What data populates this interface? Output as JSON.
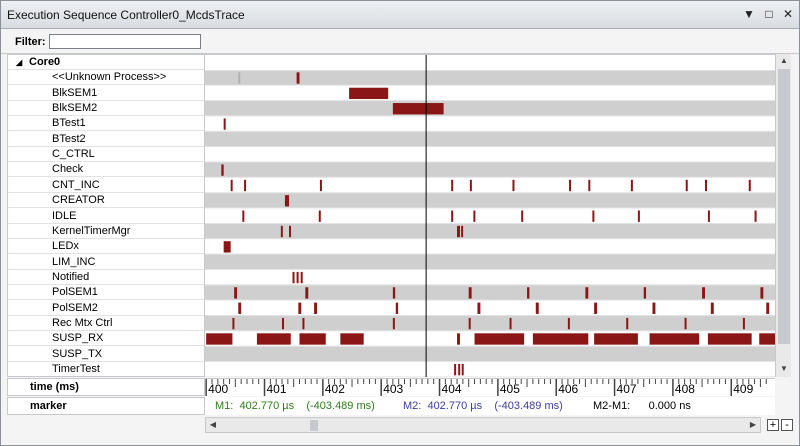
{
  "window": {
    "title": "Execution Sequence Controller0_McdsTrace",
    "controls": [
      "▼",
      "□",
      "✕"
    ]
  },
  "filter": {
    "label": "Filter:",
    "value": ""
  },
  "tree": {
    "root": "Core0",
    "rows": [
      {
        "label": "<<Unknown Process>>",
        "shade": true,
        "segments": [
          [
            400.55,
            400.57
          ],
          [
            401.55,
            401.6
          ]
        ],
        "light": [
          400.55
        ]
      },
      {
        "label": "BlkSEM1",
        "shade": false,
        "segments": [
          [
            402.45,
            403.12
          ]
        ]
      },
      {
        "label": "BlkSEM2",
        "shade": true,
        "segments": [
          [
            403.2,
            403.82
          ],
          [
            403.82,
            404.07
          ]
        ]
      },
      {
        "label": "BTest1",
        "shade": false,
        "segments": [
          [
            400.3,
            400.33
          ]
        ]
      },
      {
        "label": "BTest2",
        "shade": true,
        "segments": []
      },
      {
        "label": "C_CTRL",
        "shade": false,
        "segments": []
      },
      {
        "label": "Check",
        "shade": true,
        "segments": [
          [
            400.26,
            400.3
          ]
        ]
      },
      {
        "label": "CNT_INC",
        "shade": false,
        "segments": [
          [
            400.42,
            400.45
          ],
          [
            400.65,
            400.68
          ],
          [
            401.95,
            401.98
          ],
          [
            404.2,
            404.23
          ],
          [
            404.52,
            404.55
          ],
          [
            405.25,
            405.28
          ],
          [
            406.22,
            406.25
          ],
          [
            406.55,
            406.58
          ],
          [
            407.28,
            407.31
          ],
          [
            408.22,
            408.25
          ],
          [
            408.55,
            408.58
          ],
          [
            409.3,
            409.33
          ]
        ]
      },
      {
        "label": "CREATOR",
        "shade": true,
        "segments": [
          [
            401.35,
            401.42
          ]
        ]
      },
      {
        "label": "IDLE",
        "shade": false,
        "segments": [
          [
            400.62,
            400.64
          ],
          [
            401.93,
            401.95
          ],
          [
            404.2,
            404.22
          ],
          [
            404.58,
            404.6
          ],
          [
            405.4,
            405.42
          ],
          [
            406.62,
            406.64
          ],
          [
            407.4,
            407.42
          ],
          [
            408.6,
            408.62
          ],
          [
            409.4,
            409.42
          ]
        ]
      },
      {
        "label": "KernelTimerMgr",
        "shade": true,
        "segments": [
          [
            401.28,
            401.31
          ],
          [
            401.42,
            401.45
          ],
          [
            404.3,
            404.35
          ],
          [
            404.37,
            404.4
          ]
        ]
      },
      {
        "label": "LEDx",
        "shade": false,
        "segments": [
          [
            400.3,
            400.42
          ]
        ]
      },
      {
        "label": "LIM_INC",
        "shade": true,
        "segments": []
      },
      {
        "label": "Notified",
        "shade": false,
        "segments": [
          [
            401.48,
            401.5
          ],
          [
            401.55,
            401.57
          ],
          [
            401.62,
            401.64
          ]
        ]
      },
      {
        "label": "PolSEM1",
        "shade": true,
        "segments": [
          [
            400.48,
            400.53
          ],
          [
            401.7,
            401.75
          ],
          [
            403.2,
            403.24
          ],
          [
            404.5,
            404.55
          ],
          [
            405.5,
            405.54
          ],
          [
            406.5,
            406.55
          ],
          [
            407.5,
            407.54
          ],
          [
            408.5,
            408.55
          ],
          [
            409.5,
            409.55
          ]
        ]
      },
      {
        "label": "PolSEM2",
        "shade": false,
        "segments": [
          [
            400.55,
            400.6
          ],
          [
            401.58,
            401.63
          ],
          [
            401.85,
            401.9
          ],
          [
            403.25,
            403.29
          ],
          [
            404.65,
            404.7
          ],
          [
            405.65,
            405.7
          ],
          [
            406.65,
            406.7
          ],
          [
            407.65,
            407.7
          ],
          [
            408.65,
            408.7
          ],
          [
            409.6,
            409.65
          ]
        ]
      },
      {
        "label": "Rec Mtx Ctrl",
        "shade": true,
        "segments": [
          [
            400.45,
            400.47
          ],
          [
            401.3,
            401.32
          ],
          [
            401.65,
            401.68
          ],
          [
            403.2,
            403.22
          ],
          [
            404.5,
            404.52
          ],
          [
            405.2,
            405.22
          ],
          [
            406.2,
            406.22
          ],
          [
            407.2,
            407.22
          ],
          [
            408.2,
            408.22
          ],
          [
            409.2,
            409.22
          ]
        ]
      },
      {
        "label": "SUSP_RX",
        "shade": false,
        "segments": [
          [
            400.0,
            400.45
          ],
          [
            400.87,
            401.45
          ],
          [
            401.6,
            402.05
          ],
          [
            402.3,
            402.7
          ],
          [
            404.3,
            404.35
          ],
          [
            404.6,
            405.45
          ],
          [
            405.6,
            406.55
          ],
          [
            406.65,
            407.4
          ],
          [
            407.6,
            408.45
          ],
          [
            408.6,
            409.35
          ],
          [
            409.48,
            409.75
          ]
        ]
      },
      {
        "label": "SUSP_TX",
        "shade": true,
        "segments": []
      },
      {
        "label": "TimerTest",
        "shade": false,
        "segments": [
          [
            404.25,
            404.28
          ],
          [
            404.32,
            404.35
          ],
          [
            404.38,
            404.41
          ]
        ]
      }
    ]
  },
  "axis": {
    "label": "time (ms)",
    "ticks": [
      "400",
      "401",
      "402",
      "403",
      "404",
      "405",
      "406",
      "407",
      "408",
      "409"
    ],
    "start": 399.98,
    "end": 409.75,
    "cursor": 403.77,
    "barColor": "#8b1616"
  },
  "marker": {
    "label": "marker",
    "m1": "M1:  402.770 µs    (-403.489 ms)",
    "m2": "M2:  402.770 µs    (-403.489 ms)",
    "diff": "M2-M1:      0.000 ns",
    "m1Color": "#2e7d1a",
    "m2Color": "#3d3d9a"
  },
  "zoom": {
    "plus": "+",
    "minus": "-"
  }
}
